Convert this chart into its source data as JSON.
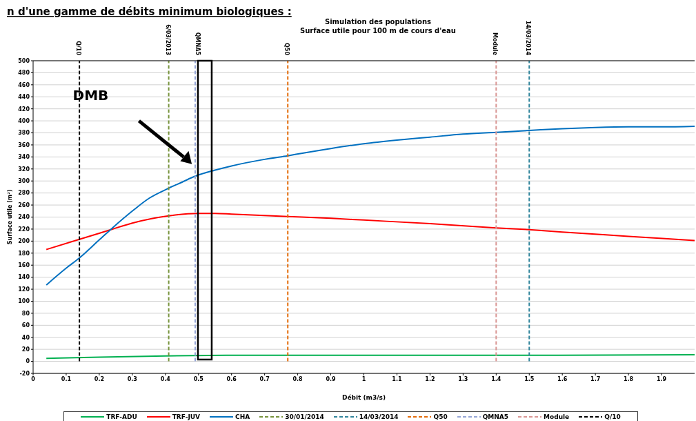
{
  "chart_data": {
    "type": "line",
    "title": "Simulation des populations",
    "subtitle": "Surface utile pour 100 m de cours d'eau",
    "xlabel": "Débit (m3/s)",
    "ylabel": "Surface utile (m²)",
    "xlim": [
      0,
      2
    ],
    "xticks": [
      0,
      0.1,
      0.2,
      0.3,
      0.4,
      0.5,
      0.6,
      0.7,
      0.8,
      0.9,
      1,
      1.1,
      1.2,
      1.3,
      1.4,
      1.5,
      1.6,
      1.7,
      1.8,
      1.9
    ],
    "ylim": [
      -20,
      500
    ],
    "yticks": [
      -20,
      0,
      20,
      40,
      60,
      80,
      100,
      120,
      140,
      160,
      180,
      200,
      220,
      240,
      260,
      280,
      300,
      320,
      340,
      360,
      380,
      400,
      420,
      440,
      460,
      480,
      500
    ],
    "grid": "y",
    "legend": "bottom",
    "marker": "none",
    "series": [
      {
        "name": "TRF-ADU",
        "color": "#00b050",
        "x": [
          0.04,
          0.2,
          0.4,
          0.6,
          1.0,
          1.5,
          2.0
        ],
        "values": [
          5,
          7,
          9,
          10,
          10,
          10,
          11
        ]
      },
      {
        "name": "TRF-JUV",
        "color": "#ff0000",
        "x": [
          0.04,
          0.14,
          0.2,
          0.24,
          0.3,
          0.41,
          0.5,
          0.55,
          0.6,
          0.77,
          0.9,
          1.0,
          1.2,
          1.4,
          1.5,
          1.6,
          1.8,
          2.0
        ],
        "values": [
          186,
          203,
          213,
          220,
          230,
          242,
          246,
          246,
          245,
          241,
          238,
          235,
          229,
          222,
          219,
          215,
          208,
          201
        ]
      },
      {
        "name": "CHA",
        "color": "#0070c0",
        "x": [
          0.04,
          0.1,
          0.14,
          0.2,
          0.24,
          0.3,
          0.35,
          0.41,
          0.45,
          0.49,
          0.55,
          0.6,
          0.7,
          0.77,
          0.9,
          1.0,
          1.1,
          1.2,
          1.3,
          1.4,
          1.5,
          1.6,
          1.7,
          1.8,
          1.9,
          2.0
        ],
        "values": [
          127,
          155,
          172,
          202,
          222,
          250,
          271,
          288,
          298,
          308,
          318,
          325,
          336,
          342,
          354,
          362,
          368,
          373,
          378,
          381,
          384,
          387,
          389,
          390,
          390,
          391
        ]
      },
      {
        "name": "30/01/2014",
        "color": "#77933c",
        "line_style": "dashed",
        "x": [
          0.41,
          0.41
        ],
        "values": [
          0,
          500
        ]
      },
      {
        "name": "14/03/2014",
        "color": "#31859c",
        "line_style": "dashed",
        "x": [
          1.5,
          1.5
        ],
        "values": [
          0,
          500
        ]
      },
      {
        "name": "Q50",
        "color": "#e46c0a",
        "line_style": "dashed",
        "x": [
          0.77,
          0.77
        ],
        "values": [
          0,
          500
        ]
      },
      {
        "name": "QMNA5",
        "color": "#95a5d6",
        "line_style": "dashed",
        "x": [
          0.49,
          0.49
        ],
        "values": [
          0,
          500
        ]
      },
      {
        "name": "Module",
        "color": "#d99694",
        "line_style": "dashed",
        "x": [
          1.4,
          1.4
        ],
        "values": [
          0,
          500
        ]
      },
      {
        "name": "Q/10",
        "color": "#000000",
        "line_style": "dashed",
        "x": [
          0.14,
          0.14
        ],
        "values": [
          0,
          500
        ]
      }
    ],
    "annotations": [
      "n d'une gamme de débits minimum biologiques :",
      "DMB",
      {
        "text": "Q/10",
        "x": 0.14,
        "y": 500
      },
      {
        "text": "6/03/2013",
        "x": 0.41,
        "y": 500
      },
      {
        "text": "QMNA5",
        "x": 0.5,
        "y": 500
      },
      {
        "text": "Q50",
        "x": 0.77,
        "y": 500
      },
      {
        "text": "Module",
        "x": 1.4,
        "y": 500
      },
      {
        "text": "14/03/2014",
        "x": 1.5,
        "y": 500
      }
    ]
  }
}
